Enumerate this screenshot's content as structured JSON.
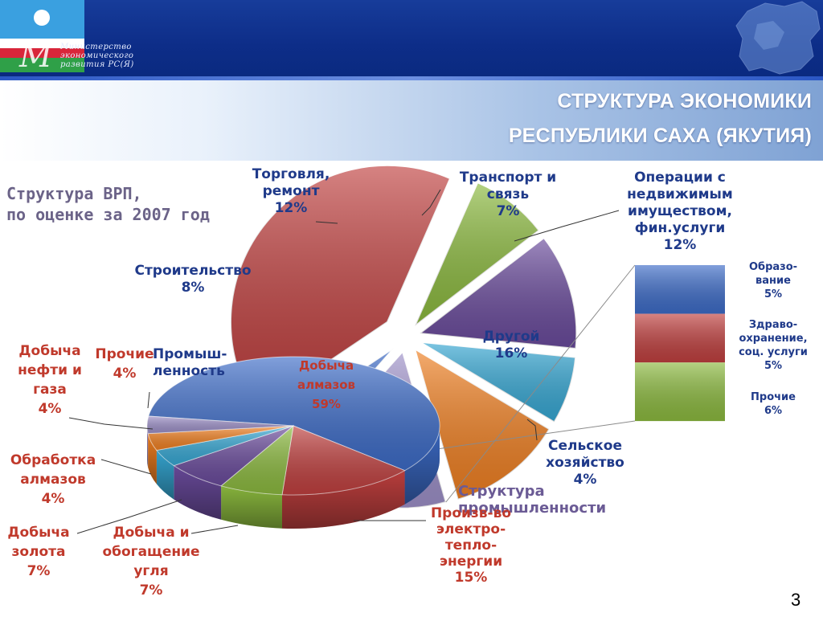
{
  "header": {
    "ministry_logo_lines": [
      "Министерство",
      "экономического",
      "развития РС(Я)"
    ]
  },
  "title": {
    "line1": "СТРУКТУРА ЭКОНОМИКИ",
    "line2": "РЕСПУБЛИКИ САХА (ЯКУТИЯ)"
  },
  "colors": {
    "header_blue": "#0d2d88",
    "blue": "#3d6cc8",
    "red": "#c0403f",
    "green": "#8cba3f",
    "purple": "#6a4b9c",
    "cyan": "#37a8d4",
    "orange": "#f08022",
    "lavender": "#9d90c8",
    "vrp_label_color": "#1f3a8a",
    "industry_label_color": "#c0392b",
    "subtitle_color": "#6b5b95"
  },
  "page_number": "3",
  "chart_data": [
    {
      "type": "pie",
      "title": "Структура ВРП, по оценке за 2007 год",
      "title_lines": [
        "Структура ВРП,",
        "по оценке за 2007 год"
      ],
      "exploded": true,
      "slices": [
        {
          "name": "Промышленность",
          "label_lines": [
            "Промыш-",
            "ленность"
          ],
          "value": 41,
          "color": "#c0403f"
        },
        {
          "name": "Строительство",
          "label_lines": [
            "Строительство",
            "8%"
          ],
          "value": 8,
          "color": "#8cba3f"
        },
        {
          "name": "Торговля, ремонт",
          "label_lines": [
            "Торговля,",
            "ремонт",
            "12%"
          ],
          "value": 12,
          "color": "#6a4b9c"
        },
        {
          "name": "Транспорт и связь",
          "label_lines": [
            "Транспорт и",
            "связь",
            "7%"
          ],
          "value": 7,
          "color": "#37a8d4"
        },
        {
          "name": "Операции с недвижимым имуществом, фин.услуги",
          "label_lines": [
            "Операции с",
            "недвижимым",
            "имуществом,",
            "фин.услуги",
            "12%"
          ],
          "value": 12,
          "color": "#f08022"
        },
        {
          "name": "Другой",
          "label_lines": [
            "Другой",
            "16%"
          ],
          "value": 16,
          "color": "#9d90c8"
        },
        {
          "name": "Сельское хозяйство",
          "label_lines": [
            "Сельское",
            "хозяйство",
            "4%"
          ],
          "value": 4,
          "color": "#3d6cc8"
        }
      ]
    },
    {
      "type": "stacked-bar",
      "title": "",
      "breakdown_of": "Другой",
      "segments": [
        {
          "name": "Образование",
          "label_lines": [
            "Образо-",
            "вание",
            "5%"
          ],
          "value": 5,
          "color": "#3d6cc8"
        },
        {
          "name": "Здравоохранение, соц. услуги",
          "label_lines": [
            "Здраво-",
            "охранение,",
            "соц. услуги",
            "5%"
          ],
          "value": 5,
          "color": "#c0403f"
        },
        {
          "name": "Прочие",
          "label_lines": [
            "Прочие",
            "6%"
          ],
          "value": 6,
          "color": "#8cba3f"
        }
      ]
    },
    {
      "type": "pie",
      "title": "Структура промышленности",
      "title_lines": [
        "Структура",
        "промышленности"
      ],
      "three_d": true,
      "slices": [
        {
          "name": "Добыча алмазов",
          "label_lines": [
            "Добыча",
            "алмазов",
            "59%"
          ],
          "value": 59,
          "color": "#3d6cc8"
        },
        {
          "name": "Произв-во электро-тепло-энергии",
          "label_lines": [
            "Произв-во",
            "электро-",
            "тепло-",
            "энергии",
            "15%"
          ],
          "value": 15,
          "color": "#c0403f"
        },
        {
          "name": "Добыча и обогащение угля",
          "label_lines": [
            "Добыча и",
            "обогащение",
            "угля",
            "7%"
          ],
          "value": 7,
          "color": "#8cba3f"
        },
        {
          "name": "Добыча золота",
          "label_lines": [
            "Добыча",
            "золота",
            "7%"
          ],
          "value": 7,
          "color": "#6a4b9c"
        },
        {
          "name": "Обработка алмазов",
          "label_lines": [
            "Обработка",
            "алмазов",
            "4%"
          ],
          "value": 4,
          "color": "#37a8d4"
        },
        {
          "name": "Добыча нефти и газа",
          "label_lines": [
            "Добыча",
            "нефти и",
            "газа",
            "4%"
          ],
          "value": 4,
          "color": "#f08022"
        },
        {
          "name": "Прочие",
          "label_lines": [
            "Прочие",
            "4%"
          ],
          "value": 4,
          "color": "#9d90c8"
        }
      ]
    }
  ]
}
